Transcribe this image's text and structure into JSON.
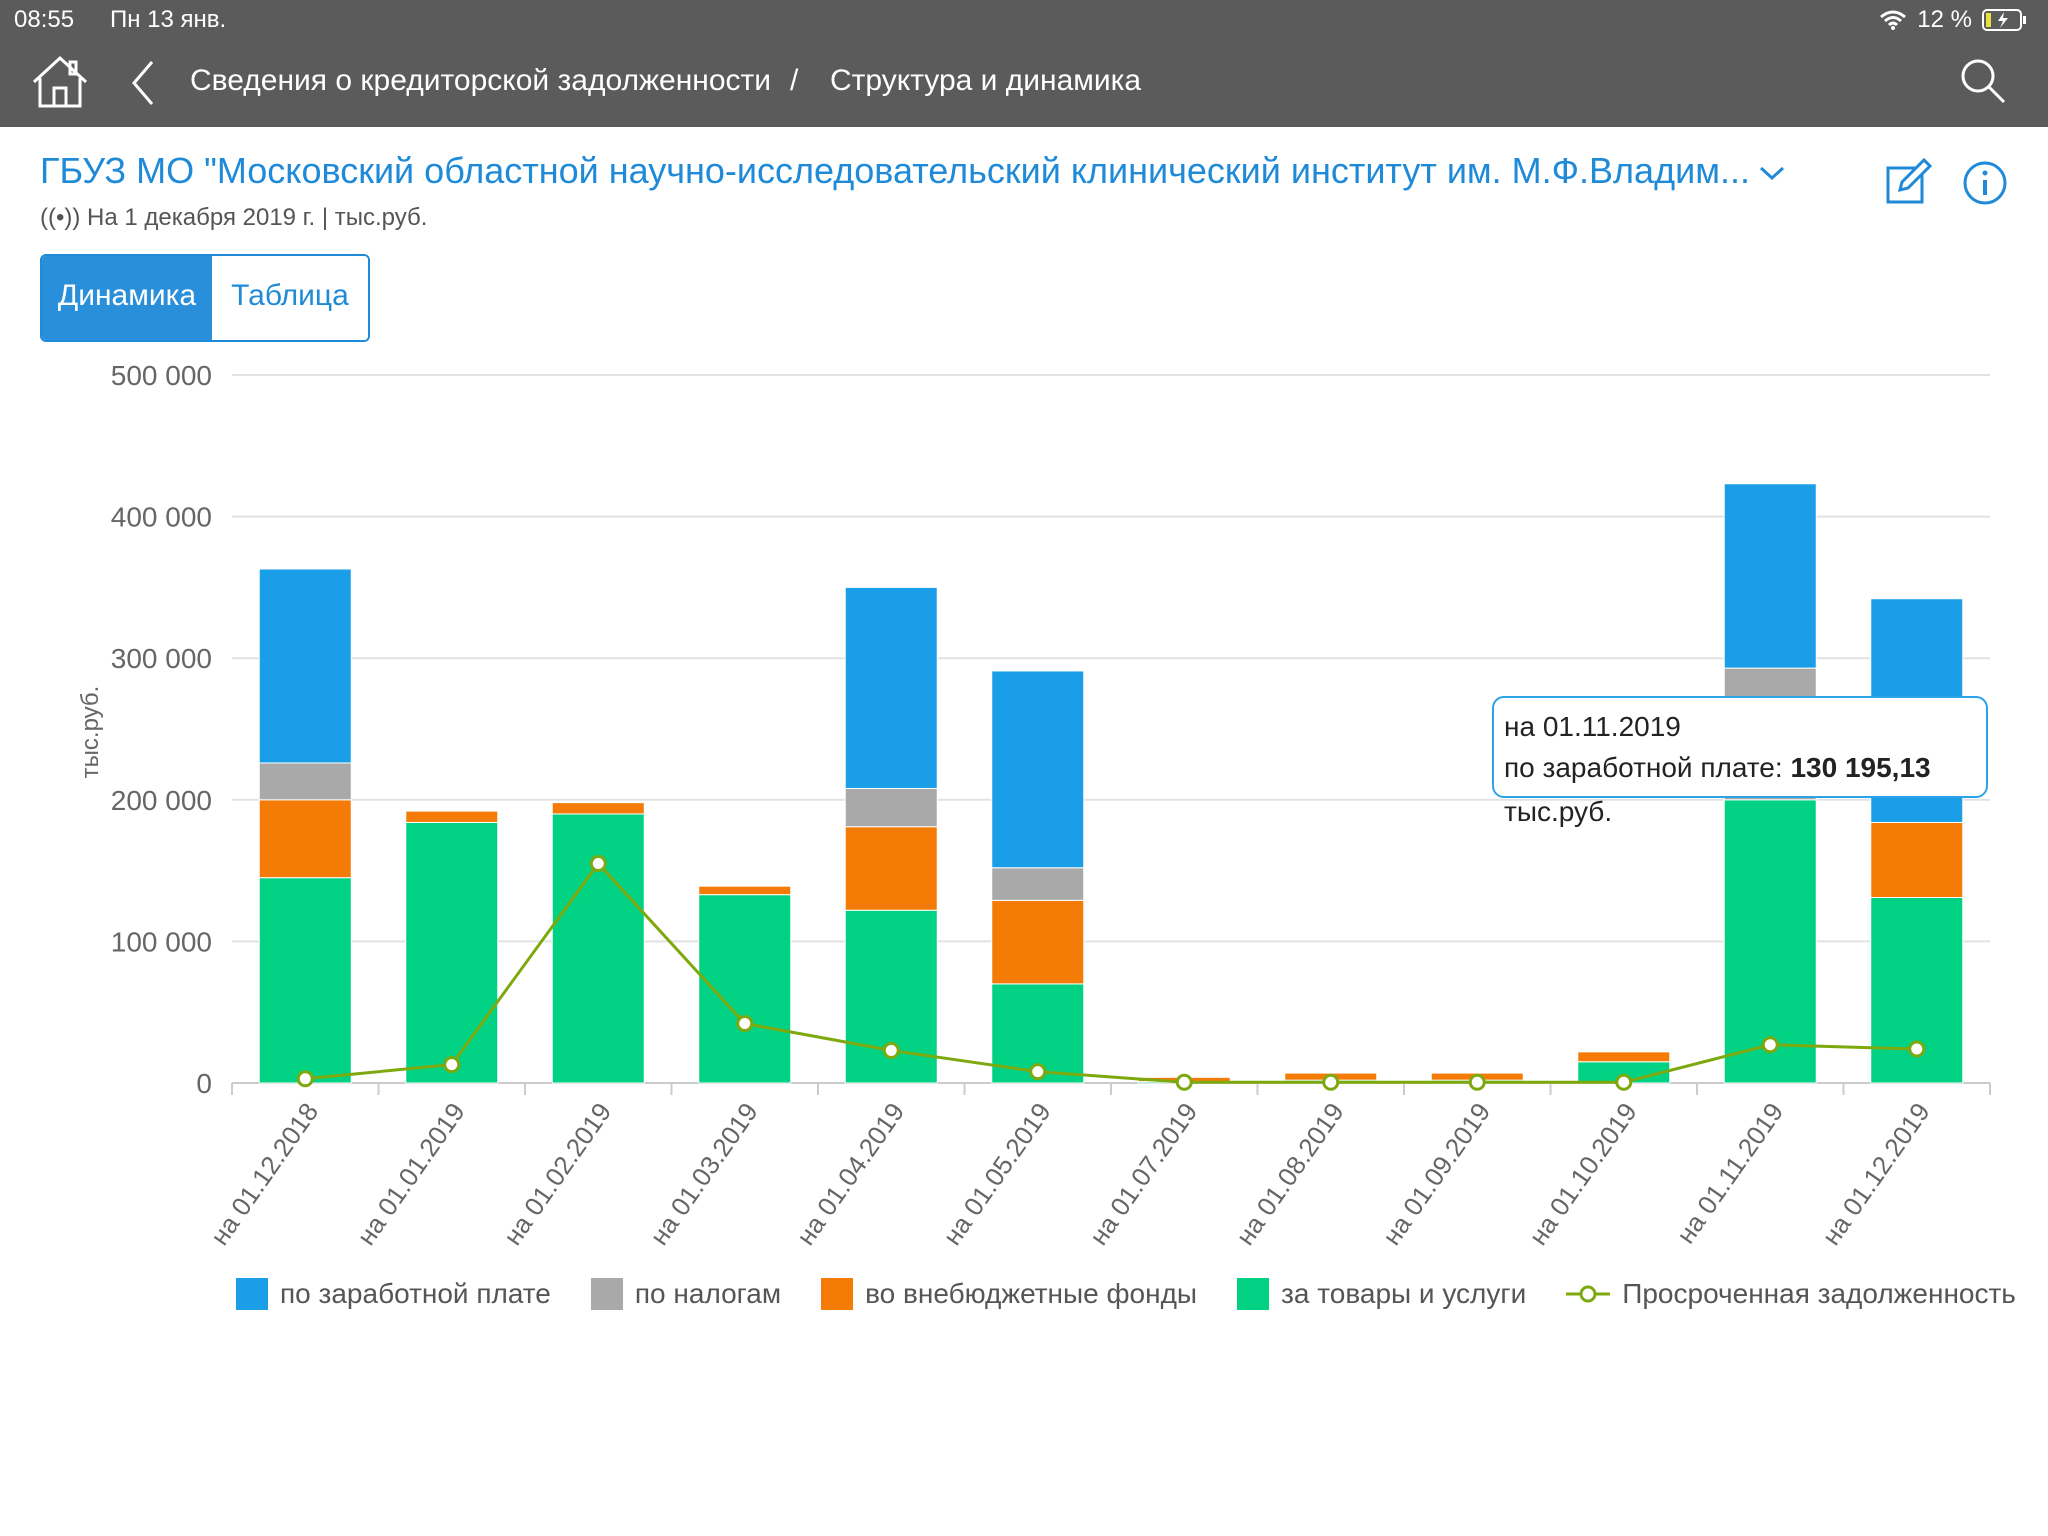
{
  "status": {
    "time": "08:55",
    "date": "Пн 13 янв.",
    "battery": "12 %"
  },
  "nav": {
    "crumb1": "Сведения о кредиторской задолженности",
    "separator": "/",
    "crumb2": "Структура и динамика"
  },
  "header": {
    "title": "ГБУЗ МО \"Московский областной научно-исследовательский клинический институт им. М.Ф.Владим...",
    "date_line": "На 1 декабря 2019 г. | тыс.руб."
  },
  "tabs": {
    "active": "Динамика",
    "inactive": "Таблица"
  },
  "tooltip": {
    "date": "на 01.11.2019",
    "label": "по заработной плате:",
    "value": "130 195,13",
    "unit": "тыс.руб."
  },
  "colors": {
    "wages": "#1a9ee8",
    "taxes": "#a9a9a9",
    "funds": "#f47c06",
    "goods": "#00d183",
    "overdue": "#7da90e",
    "nav_bg": "#5b5b5b",
    "accent": "#1e8ad8"
  },
  "chart_data": {
    "type": "bar",
    "stacked": true,
    "ylabel": "тыс.руб.",
    "ylim": [
      0,
      500000
    ],
    "yticks": [
      "0",
      "100 000",
      "200 000",
      "300 000",
      "400 000",
      "500 000"
    ],
    "categories": [
      "на 01.12.2018",
      "на 01.01.2019",
      "на 01.02.2019",
      "на 01.03.2019",
      "на 01.04.2019",
      "на 01.05.2019",
      "на 01.07.2019",
      "на 01.08.2019",
      "на 01.09.2019",
      "на 01.10.2019",
      "на 01.11.2019",
      "на 01.12.2019"
    ],
    "series": [
      {
        "name": "за товары и услуги",
        "color": "#00d183",
        "values": [
          145000,
          184000,
          190000,
          133000,
          122000,
          70000,
          1000,
          2000,
          2000,
          15000,
          200000,
          131000
        ]
      },
      {
        "name": "во внебюджетные фонды",
        "color": "#f47c06",
        "values": [
          55000,
          8000,
          8000,
          6000,
          59000,
          59000,
          3000,
          5000,
          5000,
          7000,
          0,
          53000
        ]
      },
      {
        "name": "по налогам",
        "color": "#a9a9a9",
        "values": [
          26000,
          0,
          0,
          0,
          27000,
          23000,
          0,
          0,
          0,
          0,
          93000,
          0
        ]
      },
      {
        "name": "по заработной плате",
        "color": "#1a9ee8",
        "values": [
          137000,
          0,
          0,
          0,
          142000,
          139000,
          0,
          0,
          0,
          0,
          130195.13,
          158000
        ]
      }
    ],
    "line": {
      "name": "Просроченная задолженность",
      "color": "#7da90e",
      "values": [
        3000,
        13000,
        155000,
        42000,
        23000,
        8000,
        500,
        500,
        500,
        500,
        27000,
        24000
      ]
    }
  }
}
